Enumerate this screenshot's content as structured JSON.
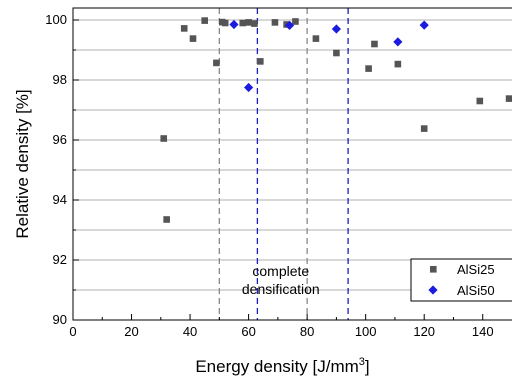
{
  "chart_data": {
    "type": "scatter",
    "title": "",
    "xlabel": "Energy density [J/mm",
    "xlabel_sup": "3",
    "xlabel_suffix": "]",
    "ylabel": "Relative density [%]",
    "xlim": [
      0,
      150
    ],
    "ylim": [
      90,
      100.4
    ],
    "x_ticks": [
      0,
      20,
      40,
      60,
      80,
      100,
      120,
      140
    ],
    "y_ticks": [
      90,
      92,
      94,
      96,
      98,
      100
    ],
    "grid": "horizontal",
    "legend_position": "bottom-right",
    "vlines": [
      {
        "x": 50,
        "color": "#888888"
      },
      {
        "x": 80,
        "color": "#888888"
      },
      {
        "x": 63,
        "color": "#1f1fbf"
      },
      {
        "x": 94,
        "color": "#1f1fbf"
      }
    ],
    "annotation": {
      "lines": [
        "complete",
        "densification"
      ],
      "x": 71,
      "y": 91.2
    },
    "series": [
      {
        "name": "AlSi25",
        "marker": "square",
        "color": "#555555",
        "points": [
          [
            31,
            96.05
          ],
          [
            32,
            93.35
          ],
          [
            38,
            99.72
          ],
          [
            41,
            99.38
          ],
          [
            45,
            99.98
          ],
          [
            49,
            98.57
          ],
          [
            51,
            99.93
          ],
          [
            52,
            99.9
          ],
          [
            58,
            99.9
          ],
          [
            60,
            99.92
          ],
          [
            62,
            99.88
          ],
          [
            64,
            98.62
          ],
          [
            69,
            99.92
          ],
          [
            73,
            99.85
          ],
          [
            76,
            99.95
          ],
          [
            83,
            99.38
          ],
          [
            90,
            98.9
          ],
          [
            101,
            98.38
          ],
          [
            103,
            99.2
          ],
          [
            111,
            98.53
          ],
          [
            120,
            96.38
          ],
          [
            139,
            97.3
          ],
          [
            149,
            97.38
          ]
        ]
      },
      {
        "name": "AlSi50",
        "marker": "diamond",
        "color": "#1c1ce0",
        "points": [
          [
            55,
            99.85
          ],
          [
            60,
            97.75
          ],
          [
            74,
            99.82
          ],
          [
            90,
            99.7
          ],
          [
            111,
            99.27
          ],
          [
            120,
            99.83
          ]
        ]
      }
    ]
  }
}
